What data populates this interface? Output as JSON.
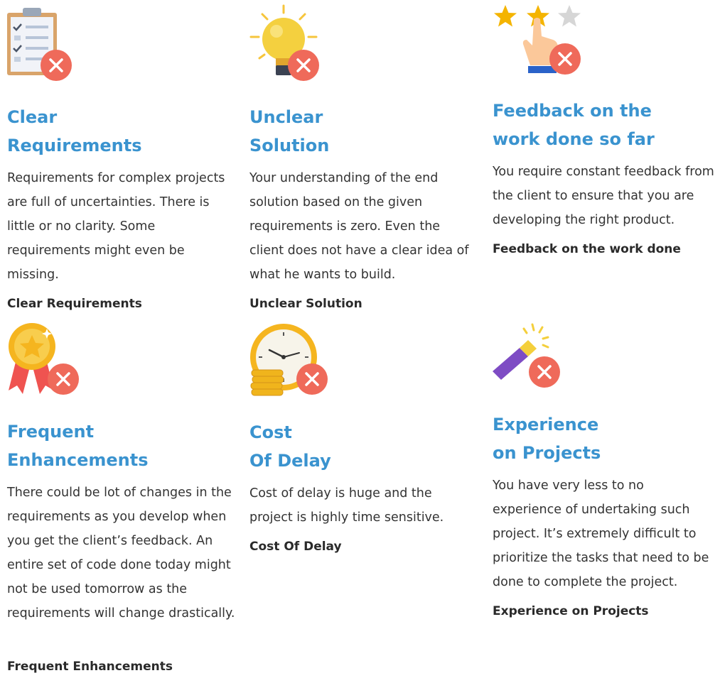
{
  "cards": [
    {
      "icon": "checklist-clipboard-icon",
      "title": [
        "Clear",
        "Requirements"
      ],
      "description": "Requirements for complex projects are full of uncertainties. There is little or no clarity. Some requirements might even be missing.",
      "link": "Clear Requirements"
    },
    {
      "icon": "lightbulb-icon",
      "title": [
        "Unclear",
        "Solution"
      ],
      "description": "Your understanding of the end solution based on the given requirements is zero. Even the client does not have a clear idea of what he wants to build.",
      "link": "Unclear Solution"
    },
    {
      "icon": "star-rating-hand-icon",
      "title": [
        "Feedback on the",
        "work done so far"
      ],
      "description": "You require constant feedback from the client to ensure that you are developing the right product.",
      "link": "Feedback on the work done"
    },
    {
      "icon": "medal-icon",
      "title": [
        "Frequent",
        "Enhancements"
      ],
      "description": "There could be lot of changes in the requirements as you develop when you get the client’s feedback. An entire set of code done today might not be used tomorrow as the requirements will change drastically.",
      "link": "Frequent Enhancements"
    },
    {
      "icon": "clock-coins-icon",
      "title": [
        "Cost",
        "Of Delay"
      ],
      "description": "Cost of delay is huge and the project is highly time sensitive.",
      "link": "Cost Of Delay"
    },
    {
      "icon": "magic-wand-icon",
      "title": [
        "Experience",
        "on Projects"
      ],
      "description": "You have very less to no experience of undertaking such project. It’s extremely difficult to prioritize the tasks that need to be done to complete the project.",
      "link": "Experience on Projects"
    }
  ],
  "colors": {
    "title": "#3a93cf",
    "text": "#333333",
    "x_badge": "#ef6a5a"
  }
}
